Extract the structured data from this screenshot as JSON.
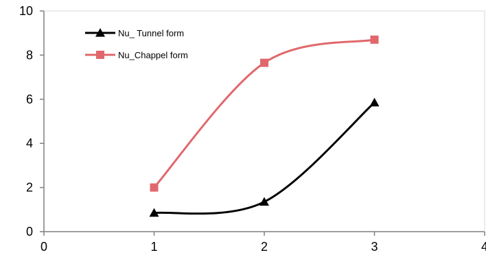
{
  "chart_data": {
    "type": "line",
    "title": "",
    "xlabel": "",
    "ylabel": "",
    "xlim": [
      0,
      4
    ],
    "ylim": [
      0,
      10
    ],
    "xticks": [
      "0",
      "1",
      "2",
      "3",
      "4"
    ],
    "yticks": [
      "0",
      "2",
      "4",
      "6",
      "8",
      "10"
    ],
    "grid": false,
    "legend": "top-left",
    "smooth": true,
    "series": [
      {
        "name": "Nu_ Tunnel form",
        "color": "#000000",
        "marker": "triangle",
        "x": [
          1,
          2,
          3
        ],
        "y": [
          0.85,
          1.35,
          5.85
        ]
      },
      {
        "name": "Nu_Chappel form",
        "color": "#e0686c",
        "marker": "square",
        "x": [
          1,
          2,
          3
        ],
        "y": [
          2.0,
          7.65,
          8.7
        ]
      }
    ]
  }
}
